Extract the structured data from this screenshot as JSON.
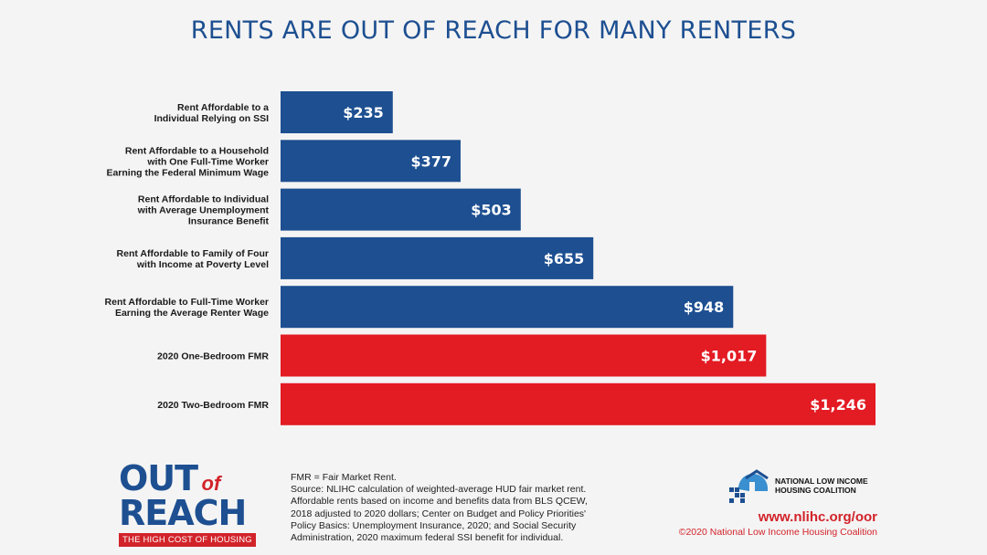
{
  "title": "RENTS ARE OUT OF REACH FOR MANY RENTERS",
  "chart_data": {
    "type": "bar",
    "orientation": "horizontal",
    "xlim": [
      0,
      1246
    ],
    "categories": [
      [
        "Rent Affordable to a",
        "Individual Relying on SSI"
      ],
      [
        "Rent Affordable to a Household",
        "with One Full-Time Worker",
        "Earning the Federal Minimum Wage"
      ],
      [
        "Rent Affordable to Individual",
        "with Average Unemployment",
        "Insurance Benefit"
      ],
      [
        "Rent Affordable to Family of Four",
        "with Income at Poverty Level"
      ],
      [
        "Rent Affordable to Full-Time Worker",
        "Earning the Average Renter Wage"
      ],
      [
        "2020 One-Bedroom FMR"
      ],
      [
        "2020 Two-Bedroom FMR"
      ]
    ],
    "values": [
      235,
      377,
      503,
      655,
      948,
      1017,
      1246
    ],
    "value_labels": [
      "$235",
      "$377",
      "$503",
      "$655",
      "$948",
      "$1,017",
      "$1,246"
    ],
    "colors": [
      "#1d4f91",
      "#1d4f91",
      "#1d4f91",
      "#1d4f91",
      "#1d4f91",
      "#e31b23",
      "#e31b23"
    ],
    "grid": false,
    "legend": "none"
  },
  "logo_left": {
    "out": "OUT",
    "of": "of",
    "reach": "REACH",
    "tagline": "THE HIGH COST OF HOUSING"
  },
  "footnote": {
    "lines": [
      "FMR = Fair Market Rent.",
      "Source: NLIHC calculation of weighted-average HUD fair market rent.",
      "Affordable rents based on income and benefits data from BLS QCEW,",
      "2018 adjusted to 2020 dollars; Center on Budget and Policy Priorities'",
      "Policy Basics: Unemployment Insurance, 2020; and Social Security",
      "Administration, 2020 maximum federal SSI benefit for individual."
    ]
  },
  "org": {
    "name_line1": "NATIONAL LOW INCOME",
    "name_line2": "HOUSING COALITION",
    "url": "www.nlihc.org/oor",
    "copyright": "©2020 National Low Income Housing Coalition"
  }
}
